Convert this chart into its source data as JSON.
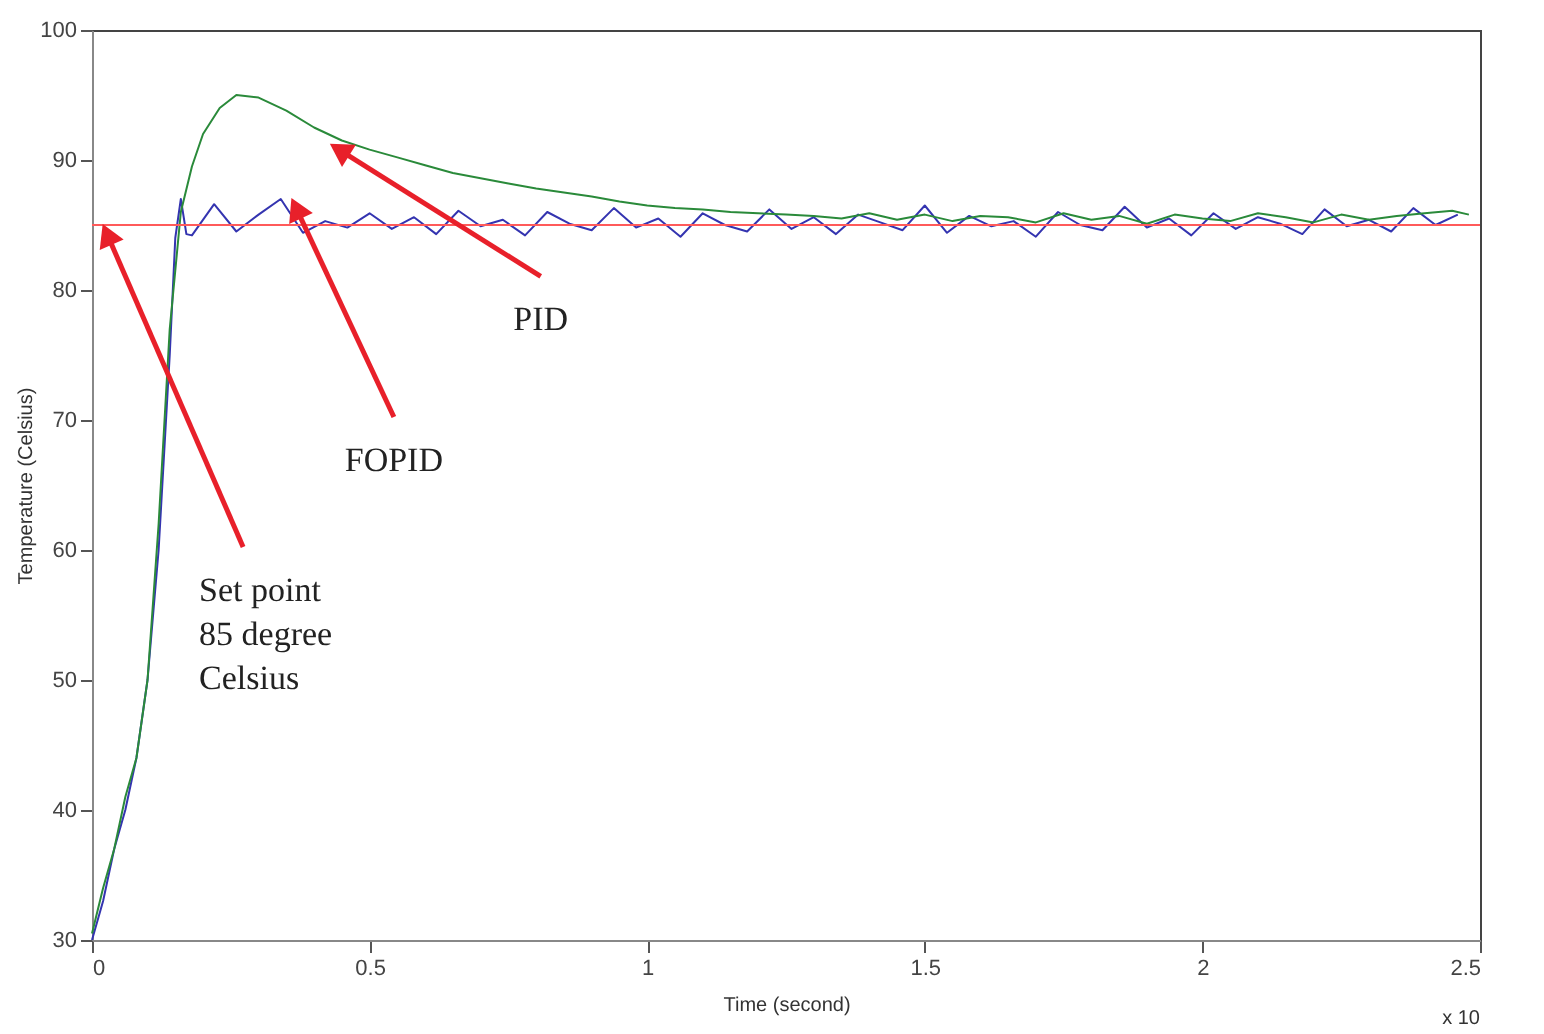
{
  "chart_data": {
    "type": "line",
    "xlabel": "Time (second)",
    "ylabel": "Temperature (Celsius)",
    "xlim": [
      0,
      2.5
    ],
    "xticks": [
      0,
      0.5,
      1,
      1.5,
      2,
      2.5
    ],
    "ylim": [
      30,
      100
    ],
    "yticks": [
      30,
      40,
      50,
      60,
      70,
      80,
      90,
      100
    ],
    "grid": false,
    "marker": "none",
    "line_style": "solid",
    "series": [
      {
        "color": "#3434b0",
        "x": [
          0,
          0.02,
          0.04,
          0.06,
          0.08,
          0.1,
          0.12,
          0.14,
          0.15,
          0.16,
          0.17,
          0.18,
          0.22,
          0.26,
          0.3,
          0.34,
          0.38,
          0.42,
          0.46,
          0.5,
          0.54,
          0.58,
          0.62,
          0.66,
          0.7,
          0.74,
          0.78,
          0.82,
          0.86,
          0.9,
          0.94,
          0.98,
          1.02,
          1.06,
          1.1,
          1.14,
          1.18,
          1.22,
          1.26,
          1.3,
          1.34,
          1.38,
          1.42,
          1.46,
          1.5,
          1.54,
          1.58,
          1.62,
          1.66,
          1.7,
          1.74,
          1.78,
          1.82,
          1.86,
          1.9,
          1.94,
          1.98,
          2.02,
          2.06,
          2.1,
          2.14,
          2.18,
          2.22,
          2.26,
          2.3,
          2.34,
          2.38,
          2.42,
          2.46
        ],
        "values": [
          30,
          33,
          37,
          40,
          44,
          50,
          60,
          75,
          84,
          87,
          84.3,
          84.2,
          86.6,
          84.5,
          85.8,
          87.0,
          84.4,
          85.3,
          84.8,
          85.9,
          84.7,
          85.6,
          84.3,
          86.1,
          84.9,
          85.4,
          84.2,
          86.0,
          85.1,
          84.6,
          86.3,
          84.8,
          85.5,
          84.1,
          85.9,
          85.0,
          84.5,
          86.2,
          84.7,
          85.6,
          84.3,
          85.8,
          85.2,
          84.6,
          86.5,
          84.4,
          85.7,
          84.9,
          85.3,
          84.1,
          86.0,
          85.0,
          84.6,
          86.4,
          84.8,
          85.5,
          84.2,
          85.9,
          84.7,
          85.6,
          85.1,
          84.3,
          86.2,
          84.9,
          85.4,
          84.5,
          86.3,
          85.0,
          85.8
        ]
      },
      {
        "color": "#2a8a3a",
        "x": [
          0,
          0.02,
          0.04,
          0.06,
          0.08,
          0.1,
          0.12,
          0.14,
          0.16,
          0.18,
          0.2,
          0.23,
          0.26,
          0.3,
          0.35,
          0.4,
          0.45,
          0.5,
          0.55,
          0.6,
          0.65,
          0.7,
          0.75,
          0.8,
          0.85,
          0.9,
          0.95,
          1.0,
          1.05,
          1.1,
          1.15,
          1.2,
          1.25,
          1.3,
          1.35,
          1.4,
          1.45,
          1.5,
          1.55,
          1.6,
          1.65,
          1.7,
          1.75,
          1.8,
          1.85,
          1.9,
          1.95,
          2.0,
          2.05,
          2.1,
          2.15,
          2.2,
          2.25,
          2.3,
          2.35,
          2.4,
          2.45,
          2.48
        ],
        "values": [
          30.5,
          34,
          37,
          41,
          44,
          50,
          62,
          77,
          86,
          89.5,
          92,
          94,
          95,
          94.8,
          93.8,
          92.5,
          91.5,
          90.8,
          90.2,
          89.6,
          89,
          88.6,
          88.2,
          87.8,
          87.5,
          87.2,
          86.8,
          86.5,
          86.3,
          86.2,
          86.0,
          85.9,
          85.8,
          85.7,
          85.5,
          85.9,
          85.4,
          85.8,
          85.3,
          85.7,
          85.6,
          85.2,
          85.9,
          85.4,
          85.7,
          85.1,
          85.8,
          85.5,
          85.3,
          85.9,
          85.6,
          85.2,
          85.8,
          85.4,
          85.7,
          85.9,
          86.1,
          85.8
        ]
      }
    ],
    "ref_lines": [
      {
        "axis": "y",
        "value": 85,
        "color": "#ff5a5a"
      }
    ],
    "annotations": [
      {
        "text": "PID",
        "x": 0.43,
        "y": 91.2
      },
      {
        "text": "FOPID",
        "x": 0.36,
        "y": 87
      },
      {
        "text": "Set point\n85 degree\nCelsius",
        "x": 0.02,
        "y": 85
      },
      "x 10"
    ]
  }
}
